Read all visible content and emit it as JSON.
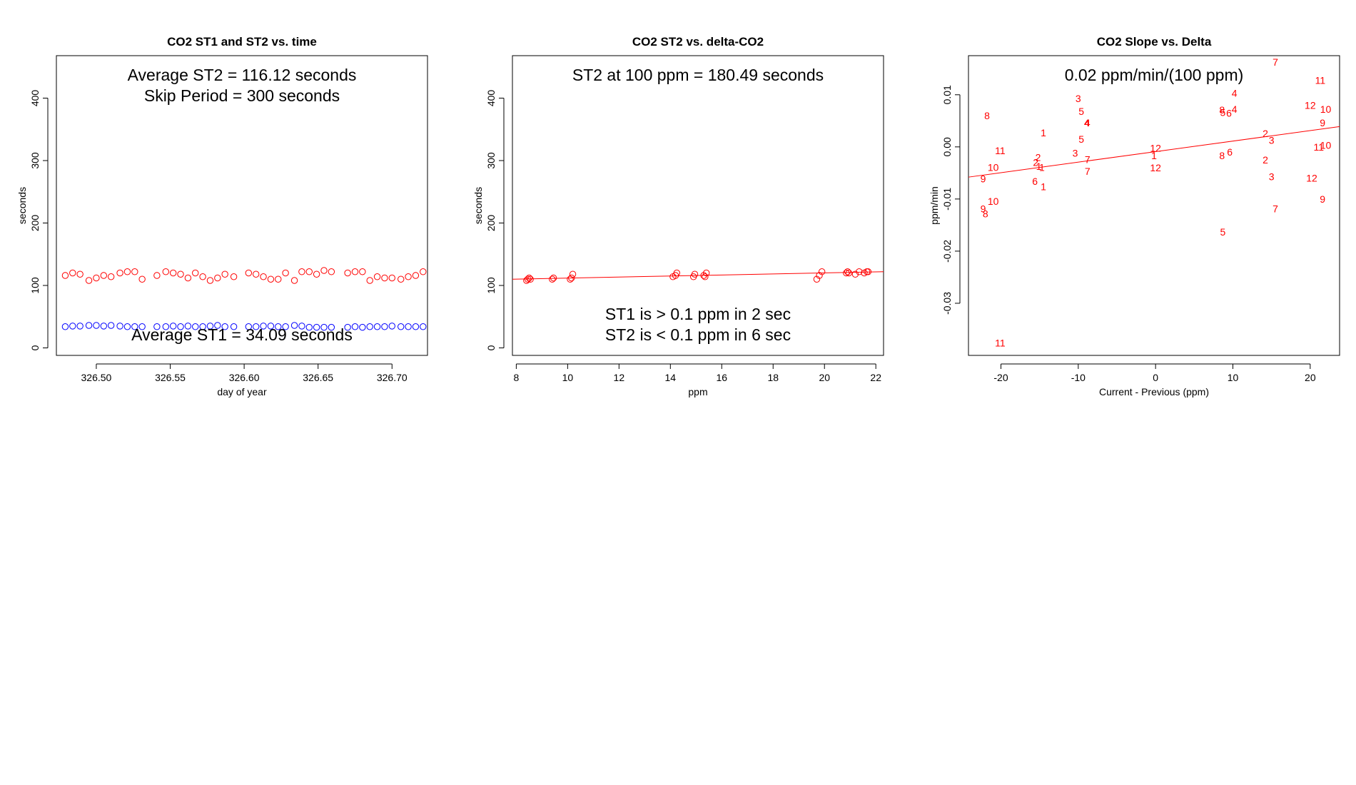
{
  "chart_data": [
    {
      "type": "scatter",
      "title": "CO2 ST1 and ST2 vs. time",
      "xlabel": "day of year",
      "ylabel": "seconds",
      "xlim": [
        326.473,
        326.724
      ],
      "ylim": [
        -12,
        468
      ],
      "xticks": [
        "326.50",
        "326.55",
        "326.60",
        "326.65",
        "326.70"
      ],
      "xtick_values": [
        326.5,
        326.55,
        326.6,
        326.65,
        326.7
      ],
      "yticks": [
        "0",
        "100",
        "200",
        "300",
        "400"
      ],
      "ytick_values": [
        0,
        100,
        200,
        300,
        400
      ],
      "annotations": [
        "Average ST2 =  116.12  seconds",
        "Skip Period =  300  seconds",
        "Average ST1 =  34.09  seconds"
      ],
      "colors": {
        "ST2": "#ff0000",
        "ST1": "#0000ff"
      },
      "series": [
        {
          "label": "ST2",
          "x": [
            326.479,
            326.484,
            326.489,
            326.495,
            326.5,
            326.505,
            326.51,
            326.516,
            326.521,
            326.526,
            326.531,
            326.541,
            326.547,
            326.552,
            326.557,
            326.562,
            326.567,
            326.572,
            326.577,
            326.582,
            326.587,
            326.593,
            326.603,
            326.608,
            326.613,
            326.618,
            326.623,
            326.628,
            326.634,
            326.639,
            326.644,
            326.649,
            326.654,
            326.659,
            326.67,
            326.675,
            326.68,
            326.685,
            326.69,
            326.695,
            326.7,
            326.706,
            326.711,
            326.716,
            326.721
          ],
          "y": [
            116,
            120,
            118,
            108,
            112,
            116,
            114,
            120,
            122,
            122,
            110,
            116,
            122,
            120,
            118,
            112,
            120,
            114,
            108,
            112,
            118,
            114,
            120,
            118,
            114,
            110,
            110,
            120,
            108,
            122,
            122,
            118,
            124,
            122,
            120,
            122,
            122,
            108,
            114,
            112,
            112,
            110,
            114,
            116,
            122
          ]
        },
        {
          "label": "ST1",
          "x": [
            326.479,
            326.484,
            326.489,
            326.495,
            326.5,
            326.505,
            326.51,
            326.516,
            326.521,
            326.526,
            326.531,
            326.541,
            326.547,
            326.552,
            326.557,
            326.562,
            326.567,
            326.572,
            326.577,
            326.582,
            326.587,
            326.593,
            326.603,
            326.608,
            326.613,
            326.618,
            326.623,
            326.628,
            326.634,
            326.639,
            326.644,
            326.649,
            326.654,
            326.659,
            326.67,
            326.675,
            326.68,
            326.685,
            326.69,
            326.695,
            326.7,
            326.706,
            326.711,
            326.716,
            326.721
          ],
          "y": [
            34,
            35,
            35,
            36,
            36,
            35,
            36,
            35,
            34,
            34,
            34,
            34,
            34,
            35,
            34,
            35,
            34,
            34,
            35,
            36,
            34,
            34,
            34,
            34,
            35,
            35,
            34,
            34,
            36,
            35,
            33,
            33,
            33,
            33,
            33,
            34,
            33,
            34,
            34,
            34,
            35,
            34,
            34,
            34,
            34
          ]
        }
      ]
    },
    {
      "type": "scatter",
      "title": "CO2 ST2 vs. delta-CO2",
      "xlabel": "ppm",
      "ylabel": "seconds",
      "xlim": [
        7.85,
        22.3
      ],
      "ylim": [
        -12,
        468
      ],
      "xticks": [
        "8",
        "10",
        "12",
        "14",
        "16",
        "18",
        "20",
        "22"
      ],
      "xtick_values": [
        8,
        10,
        12,
        14,
        16,
        18,
        20,
        22
      ],
      "yticks": [
        "0",
        "100",
        "200",
        "300",
        "400"
      ],
      "ytick_values": [
        0,
        100,
        200,
        300,
        400
      ],
      "annotations": [
        "ST2 at 100 ppm =  180.49  seconds",
        "ST1 is > 0.1 ppm in 2 sec",
        "ST2 is < 0.1 ppm in 6 sec"
      ],
      "colors": {
        "points": "#ff0000",
        "fit": "#ff0000"
      },
      "fit_line": {
        "x": [
          7.85,
          22.3
        ],
        "y": [
          110,
          122
        ]
      },
      "series": [
        {
          "x": [
            8.4,
            8.45,
            8.5,
            8.55,
            9.4,
            9.45,
            10.1,
            10.15,
            10.2,
            14.1,
            14.2,
            14.25,
            14.9,
            14.95,
            15.3,
            15.35,
            15.4,
            19.7,
            19.8,
            19.9,
            20.85,
            20.9,
            20.95,
            21.2,
            21.35,
            21.55,
            21.65,
            21.7
          ],
          "y": [
            108,
            110,
            112,
            110,
            110,
            112,
            110,
            112,
            118,
            114,
            116,
            120,
            114,
            118,
            116,
            114,
            120,
            110,
            116,
            122,
            120,
            122,
            120,
            118,
            122,
            120,
            122,
            122
          ]
        }
      ]
    },
    {
      "type": "scatter",
      "title": "CO2 Slope vs. Delta",
      "xlabel": "Current - Previous (ppm)",
      "ylabel": "ppm/min",
      "xlim": [
        -24.2,
        23.8
      ],
      "ylim": [
        -0.04,
        0.0175
      ],
      "xticks": [
        "-20",
        "-10",
        "0",
        "10",
        "20"
      ],
      "xtick_values": [
        -20,
        -10,
        0,
        10,
        20
      ],
      "yticks": [
        "-0.03",
        "-0.02",
        "-0.01",
        "0.00",
        "0.01"
      ],
      "ytick_values": [
        -0.03,
        -0.02,
        -0.01,
        0.0,
        0.01
      ],
      "annotations": [
        "0.02  ppm/min/(100 ppm)"
      ],
      "colors": {
        "labels": "#ff0000",
        "fit": "#ff0000"
      },
      "fit_line": {
        "x": [
          -24.2,
          23.8
        ],
        "y": [
          -0.0058,
          0.0039
        ]
      },
      "points": [
        {
          "x": 15.5,
          "y": 0.0163,
          "label": "7"
        },
        {
          "x": 21.3,
          "y": 0.0128,
          "label": "11"
        },
        {
          "x": 10.2,
          "y": 0.0103,
          "label": "4"
        },
        {
          "x": -10.0,
          "y": 0.0093,
          "label": "3"
        },
        {
          "x": 20.0,
          "y": 0.008,
          "label": "12"
        },
        {
          "x": 22.0,
          "y": 0.0072,
          "label": "10"
        },
        {
          "x": -9.6,
          "y": 0.0068,
          "label": "5"
        },
        {
          "x": 8.6,
          "y": 0.0071,
          "label": "8"
        },
        {
          "x": 10.2,
          "y": 0.0072,
          "label": "4"
        },
        {
          "x": 8.7,
          "y": 0.0066,
          "label": "5"
        },
        {
          "x": 9.5,
          "y": 0.0065,
          "label": "6"
        },
        {
          "x": -21.8,
          "y": 0.006,
          "label": "8"
        },
        {
          "x": -8.8,
          "y": 0.0046,
          "label": "4"
        },
        {
          "x": -8.9,
          "y": 0.0046,
          "label": "4"
        },
        {
          "x": 21.6,
          "y": 0.0046,
          "label": "9"
        },
        {
          "x": -14.5,
          "y": 0.0027,
          "label": "1"
        },
        {
          "x": 14.2,
          "y": 0.0026,
          "label": "2"
        },
        {
          "x": -9.6,
          "y": 0.0015,
          "label": "5"
        },
        {
          "x": 15.0,
          "y": 0.0013,
          "label": "3"
        },
        {
          "x": 21.1,
          "y": 0.0,
          "label": "11"
        },
        {
          "x": 22.0,
          "y": 0.0003,
          "label": "10"
        },
        {
          "x": 0.0,
          "y": -0.0002,
          "label": "12"
        },
        {
          "x": -20.1,
          "y": -0.0007,
          "label": "11"
        },
        {
          "x": -10.4,
          "y": -0.0012,
          "label": "3"
        },
        {
          "x": 9.6,
          "y": -0.001,
          "label": "6"
        },
        {
          "x": -0.2,
          "y": -0.0017,
          "label": "1"
        },
        {
          "x": 8.6,
          "y": -0.0017,
          "label": "8"
        },
        {
          "x": -15.2,
          "y": -0.002,
          "label": "2"
        },
        {
          "x": -8.8,
          "y": -0.0024,
          "label": "7"
        },
        {
          "x": 14.2,
          "y": -0.0025,
          "label": "2"
        },
        {
          "x": -15.5,
          "y": -0.003,
          "label": "2"
        },
        {
          "x": -15.1,
          "y": -0.0037,
          "label": "1"
        },
        {
          "x": -14.7,
          "y": -0.0039,
          "label": "1"
        },
        {
          "x": -21.0,
          "y": -0.0039,
          "label": "10"
        },
        {
          "x": 0.0,
          "y": -0.004,
          "label": "12"
        },
        {
          "x": -8.8,
          "y": -0.0047,
          "label": "7"
        },
        {
          "x": 15.0,
          "y": -0.0057,
          "label": "3"
        },
        {
          "x": -22.3,
          "y": -0.0061,
          "label": "9"
        },
        {
          "x": 20.2,
          "y": -0.006,
          "label": "12"
        },
        {
          "x": -15.6,
          "y": -0.0066,
          "label": "6"
        },
        {
          "x": -14.5,
          "y": -0.0076,
          "label": "1"
        },
        {
          "x": -21.0,
          "y": -0.0104,
          "label": "10"
        },
        {
          "x": 21.6,
          "y": -0.01,
          "label": "9"
        },
        {
          "x": -22.3,
          "y": -0.0119,
          "label": "9"
        },
        {
          "x": -22.0,
          "y": -0.0128,
          "label": "8"
        },
        {
          "x": 15.5,
          "y": -0.0119,
          "label": "7"
        },
        {
          "x": 8.7,
          "y": -0.0163,
          "label": "5"
        },
        {
          "x": -20.1,
          "y": -0.0376,
          "label": "11"
        }
      ]
    }
  ]
}
